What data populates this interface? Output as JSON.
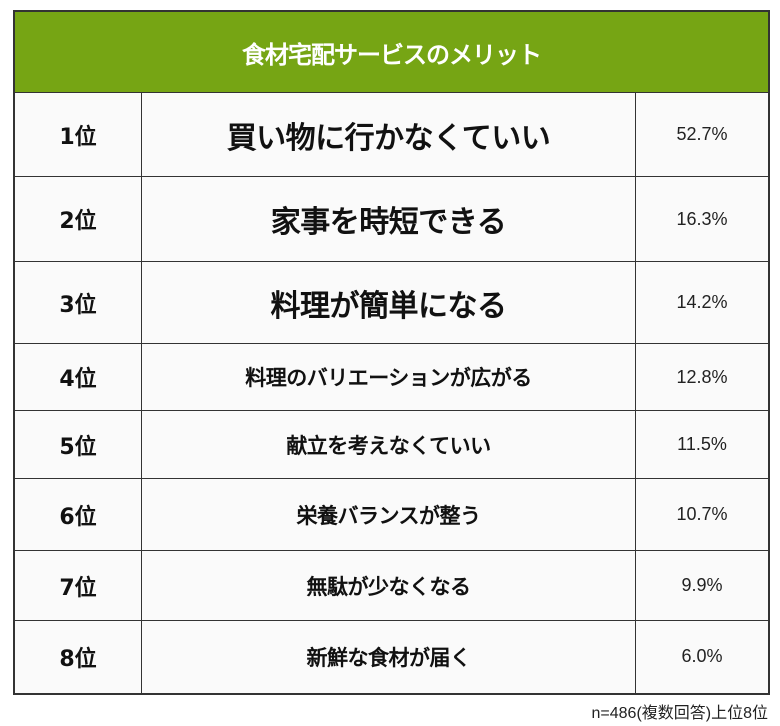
{
  "chart_data": {
    "type": "table",
    "title": "食材宅配サービスのメリット",
    "rows": [
      {
        "rank": "1位",
        "item": "買い物に行かなくていい",
        "value": "52.7%"
      },
      {
        "rank": "2位",
        "item": "家事を時短できる",
        "value": "16.3%"
      },
      {
        "rank": "3位",
        "item": "料理が簡単になる",
        "value": "14.2%"
      },
      {
        "rank": "4位",
        "item": "料理のバリエーションが広がる",
        "value": "12.8%"
      },
      {
        "rank": "5位",
        "item": "献立を考えなくていい",
        "value": "11.5%"
      },
      {
        "rank": "6位",
        "item": "栄養バランスが整う",
        "value": "10.7%"
      },
      {
        "rank": "7位",
        "item": "無駄が少なくなる",
        "value": "9.9%"
      },
      {
        "rank": "8位",
        "item": "新鮮な食材が届く",
        "value": "6.0%"
      }
    ],
    "footnote": "n=486(複数回答)上位8位",
    "header_color": "#76a514"
  }
}
